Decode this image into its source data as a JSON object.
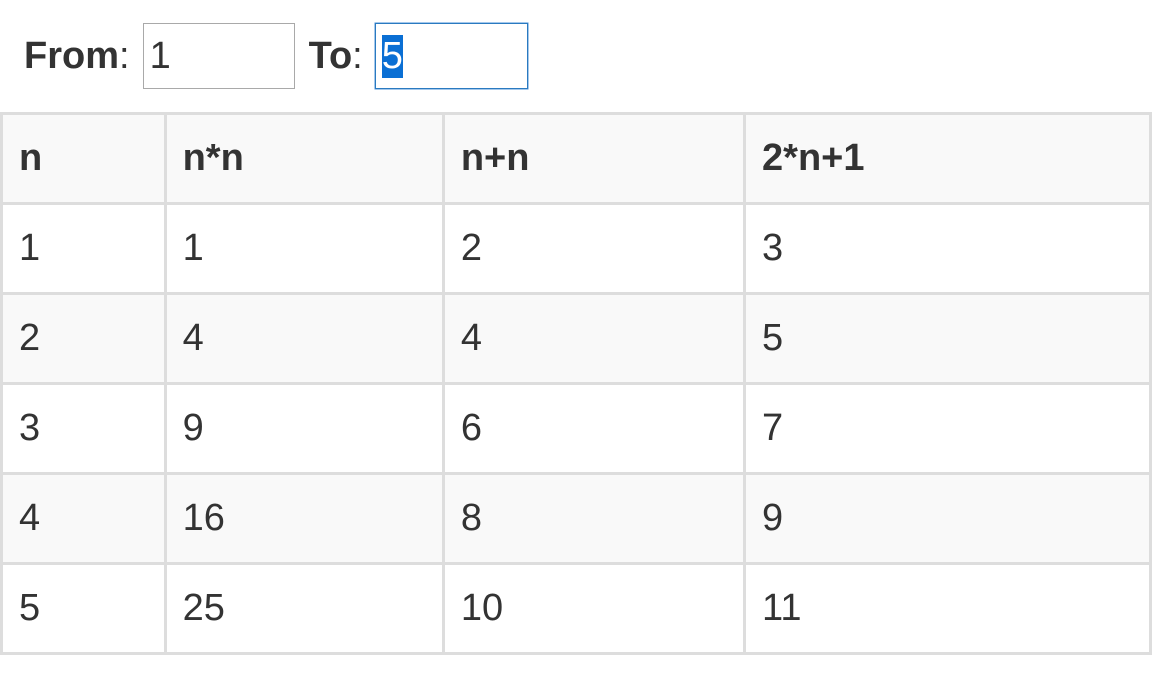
{
  "controls": {
    "from_label": "From",
    "from_value": "1",
    "to_label": "To",
    "to_value": "5"
  },
  "table": {
    "headers": [
      "n",
      "n*n",
      "n+n",
      "2*n+1"
    ],
    "rows": [
      [
        "1",
        "1",
        "2",
        "3"
      ],
      [
        "2",
        "4",
        "4",
        "5"
      ],
      [
        "3",
        "9",
        "6",
        "7"
      ],
      [
        "4",
        "16",
        "8",
        "9"
      ],
      [
        "5",
        "25",
        "10",
        "11"
      ]
    ]
  },
  "colors": {
    "text": "#333333",
    "border": "#dddddd",
    "stripe": "#f9f9f9",
    "selection": "#0a6fd4"
  }
}
